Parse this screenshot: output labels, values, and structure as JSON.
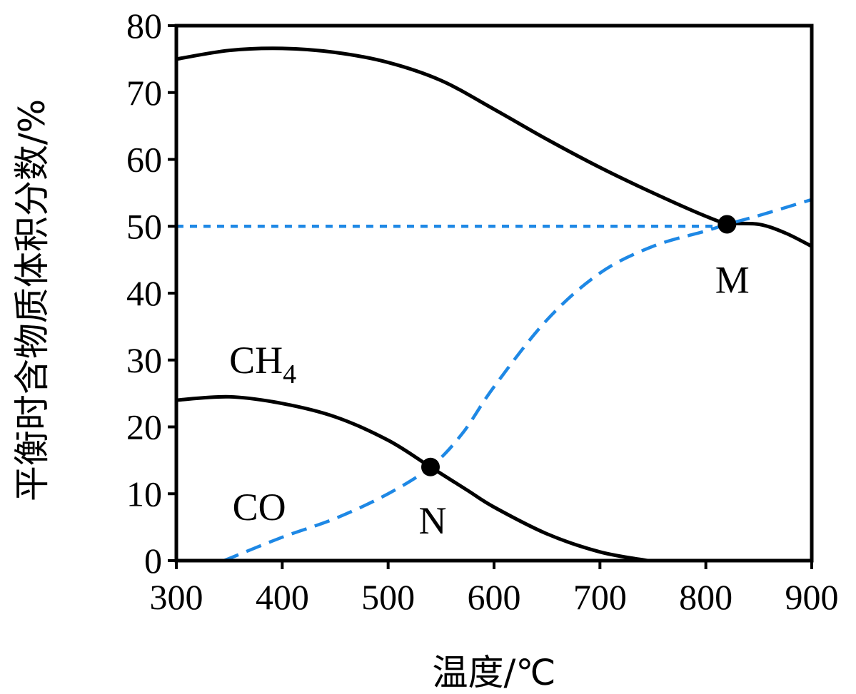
{
  "chart_data": {
    "type": "line",
    "xlabel": "温度/℃",
    "ylabel": "平衡时含物质体积分数/%",
    "xlim": [
      300,
      900
    ],
    "ylim": [
      0,
      80
    ],
    "x_ticks": [
      "300",
      "400",
      "500",
      "600",
      "700",
      "800",
      "900"
    ],
    "y_ticks": [
      "0",
      "10",
      "20",
      "30",
      "40",
      "50",
      "60",
      "70",
      "80"
    ],
    "grid": false,
    "series": [
      {
        "color": "#000000",
        "style": "solid",
        "x": [
          300,
          350,
          400,
          450,
          500,
          550,
          600,
          650,
          700,
          750,
          800,
          820,
          850,
          875,
          900
        ],
        "y": [
          75,
          76.3,
          76.6,
          76,
          74.5,
          71.8,
          67.5,
          63,
          58.8,
          55,
          51.5,
          50.5,
          50.3,
          49,
          47
        ]
      },
      {
        "color": "#000000",
        "style": "solid",
        "x": [
          300,
          350,
          400,
          450,
          500,
          540,
          575,
          600,
          650,
          700,
          745
        ],
        "y": [
          24,
          24.5,
          23.5,
          21.5,
          18,
          14,
          10.5,
          8,
          4,
          1.3,
          0
        ]
      },
      {
        "color": "#1E88E5",
        "style": "dashed",
        "x": [
          345,
          400,
          450,
          500,
          540,
          570,
          600,
          650,
          700,
          750,
          800,
          820,
          850,
          900
        ],
        "y": [
          0,
          3.5,
          6.3,
          10,
          14,
          19,
          26,
          36,
          43,
          47,
          49.3,
          50.3,
          51.6,
          54
        ]
      },
      {
        "color": "#1E88E5",
        "style": "dotted",
        "x": [
          300,
          820
        ],
        "y": [
          50,
          50
        ]
      }
    ],
    "annotations": [
      {
        "label": "CH",
        "sub": "4",
        "x": 350,
        "y": 30
      },
      {
        "label": "CO",
        "x": 353,
        "y": 8
      },
      {
        "label": "M",
        "x": 820,
        "y": 50.3,
        "marker": true,
        "text_x": 825,
        "text_y": 42
      },
      {
        "label": "N",
        "x": 540,
        "y": 14,
        "marker": true,
        "text_x": 542,
        "text_y": 6
      }
    ]
  }
}
